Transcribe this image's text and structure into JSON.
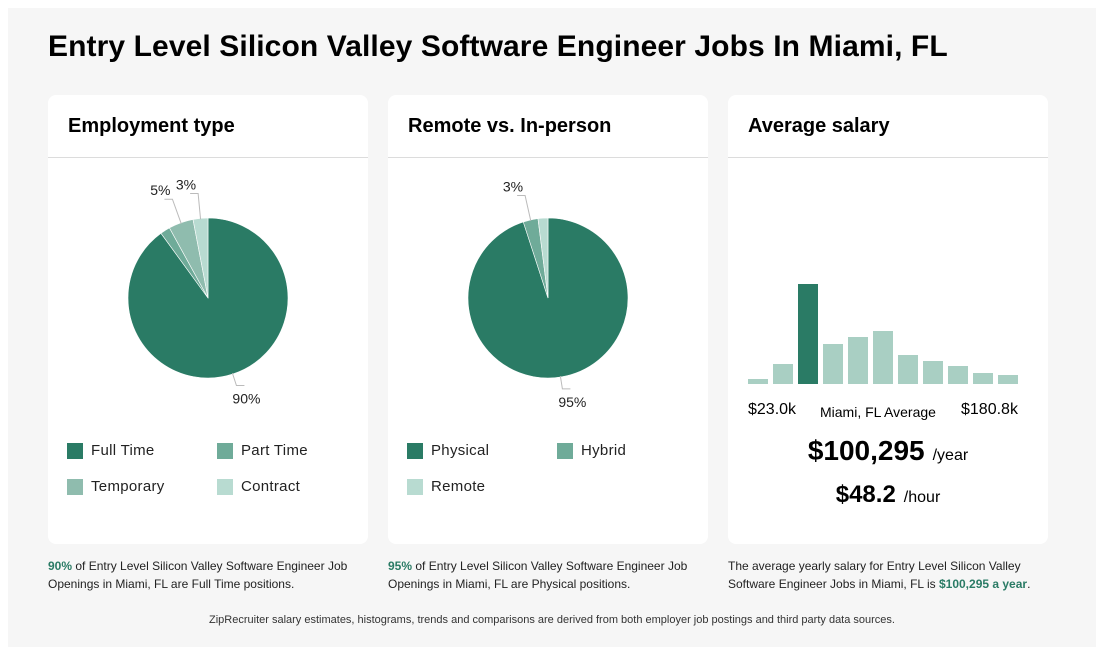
{
  "page": {
    "title": "Entry Level Silicon Valley Software Engineer Jobs In Miami, FL",
    "footer": "ZipRecruiter salary estimates, histograms, trends and comparisons are derived from both employer job postings and third party data sources."
  },
  "colors": {
    "accent": "#2a7b65",
    "secondary": "#6fab99",
    "tertiary": "#8fbcae",
    "light": "#b8dbd1",
    "hist_light": "#a9cfc3"
  },
  "employment": {
    "title": "Employment type",
    "description": {
      "highlight": "90%",
      "text": " of Entry Level Silicon Valley Software Engineer Job Openings in Miami, FL are Full Time positions."
    }
  },
  "remote": {
    "title": "Remote vs. In-person",
    "description": {
      "highlight": "95%",
      "text": " of Entry Level Silicon Valley Software Engineer Job Openings in Miami, FL are Physical positions."
    }
  },
  "salary": {
    "title": "Average salary",
    "min_label": "$23.0k",
    "mid_label": "Miami, FL Average",
    "max_label": "$180.8k",
    "yearly": "$100,295",
    "yearly_unit": "/year",
    "hourly": "$48.2",
    "hourly_unit": "/hour",
    "description": {
      "text": "The average yearly salary for Entry Level Silicon Valley Software Engineer Jobs in Miami, FL is ",
      "highlight": "$100,295 a year",
      "end": "."
    }
  },
  "chart_data": [
    {
      "type": "pie",
      "title": "Employment type",
      "slices": [
        {
          "name": "Full Time",
          "value": 90,
          "label": "90%",
          "color": "#2a7b65"
        },
        {
          "name": "Part Time",
          "value": 2,
          "label": "",
          "color": "#6fab99"
        },
        {
          "name": "Temporary",
          "value": 5,
          "label": "5%",
          "color": "#8fbcae"
        },
        {
          "name": "Contract",
          "value": 3,
          "label": "3%",
          "color": "#b8dbd1"
        }
      ]
    },
    {
      "type": "pie",
      "title": "Remote vs. In-person",
      "slices": [
        {
          "name": "Physical",
          "value": 95,
          "label": "95%",
          "color": "#2a7b65"
        },
        {
          "name": "Hybrid",
          "value": 3,
          "label": "3%",
          "color": "#6fab99"
        },
        {
          "name": "Remote",
          "value": 2,
          "label": "",
          "color": "#b8dbd1"
        }
      ]
    },
    {
      "type": "bar",
      "title": "Average salary",
      "xlim_labels": [
        "$23.0k",
        "$180.8k"
      ],
      "values": [
        5,
        20,
        100,
        40,
        47,
        53,
        29,
        23,
        18,
        11,
        9
      ],
      "highlight_index": 2,
      "ylim": [
        0,
        100
      ]
    }
  ]
}
